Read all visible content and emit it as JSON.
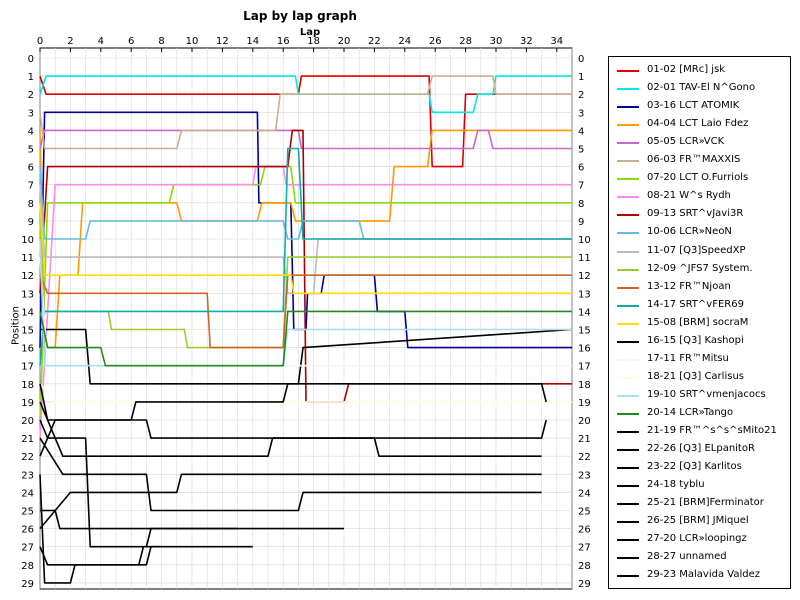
{
  "chart_data": {
    "type": "line",
    "title": "Lap by lap graph",
    "xlabel": "Lap",
    "ylabel": "Position",
    "xlim": [
      0,
      35
    ],
    "ylim": [
      0,
      29
    ],
    "y_inverted": true,
    "x_ticks": [
      "0",
      "2",
      "4",
      "6",
      "8",
      "10",
      "12",
      "14",
      "16",
      "18",
      "20",
      "22",
      "24",
      "26",
      "28",
      "30",
      "32",
      "34"
    ],
    "y_ticks": [
      "0",
      "1",
      "2",
      "3",
      "4",
      "5",
      "6",
      "7",
      "8",
      "9",
      "10",
      "11",
      "12",
      "13",
      "14",
      "15",
      "16",
      "17",
      "18",
      "19",
      "20",
      "21",
      "22",
      "23",
      "24",
      "25",
      "26",
      "27",
      "28",
      "29"
    ],
    "grid": true,
    "legend_position": "right",
    "series": [
      {
        "name": "01-02 [MRc] jsk",
        "color": "#dd0000",
        "points": [
          [
            0,
            1
          ],
          [
            0.4,
            2
          ],
          [
            17,
            2
          ],
          [
            17.2,
            1
          ],
          [
            25.6,
            1
          ],
          [
            25.8,
            6
          ],
          [
            27.8,
            6
          ],
          [
            28,
            2
          ],
          [
            35,
            2
          ]
        ]
      },
      {
        "name": "02-01 TAV-El N^Gono",
        "color": "#00e8e8",
        "points": [
          [
            0,
            2
          ],
          [
            0.4,
            1
          ],
          [
            16.8,
            1
          ],
          [
            17,
            2
          ],
          [
            25.6,
            2
          ],
          [
            25.8,
            3
          ],
          [
            28.5,
            3
          ],
          [
            28.8,
            2
          ],
          [
            29.8,
            2
          ],
          [
            30,
            1
          ],
          [
            35,
            1
          ]
        ]
      },
      {
        "name": "03-16 LCT ATOMIK",
        "color": "#000099",
        "points": [
          [
            0,
            16
          ],
          [
            0.3,
            3
          ],
          [
            14.3,
            3
          ],
          [
            14.4,
            8
          ],
          [
            16.5,
            8
          ],
          [
            16.7,
            15
          ],
          [
            17.5,
            15
          ],
          [
            17.6,
            13
          ],
          [
            18.5,
            13
          ],
          [
            18.7,
            12
          ],
          [
            22,
            12
          ],
          [
            22.2,
            14
          ],
          [
            24,
            14
          ],
          [
            24.2,
            16
          ],
          [
            35,
            16
          ]
        ]
      },
      {
        "name": "04-04 LCT Laio Fdez",
        "color": "#ff9900",
        "points": [
          [
            0,
            4
          ],
          [
            0.3,
            16
          ],
          [
            1,
            16
          ],
          [
            1.3,
            12
          ],
          [
            2.5,
            12
          ],
          [
            2.8,
            8
          ],
          [
            9,
            8
          ],
          [
            9.3,
            9
          ],
          [
            14.3,
            9
          ],
          [
            14.6,
            8
          ],
          [
            16.5,
            8
          ],
          [
            16.8,
            9
          ],
          [
            23,
            9
          ],
          [
            23.3,
            6
          ],
          [
            25.5,
            6
          ],
          [
            25.8,
            4
          ],
          [
            35,
            4
          ]
        ]
      },
      {
        "name": "05-05 LCR»VCK",
        "color": "#cc66cc",
        "points": [
          [
            0,
            5
          ],
          [
            0.3,
            4
          ],
          [
            17,
            4
          ],
          [
            17.2,
            5
          ],
          [
            28.5,
            5
          ],
          [
            28.8,
            4
          ],
          [
            29.5,
            4
          ],
          [
            29.8,
            5
          ],
          [
            35,
            5
          ]
        ]
      },
      {
        "name": "06-03 FR™MAXXIS",
        "color": "#c8b090",
        "points": [
          [
            0,
            3
          ],
          [
            0.3,
            5
          ],
          [
            9,
            5
          ],
          [
            9.3,
            4
          ],
          [
            15.5,
            4
          ],
          [
            15.8,
            2
          ],
          [
            25.5,
            2
          ],
          [
            25.8,
            1
          ],
          [
            29.8,
            1
          ],
          [
            30,
            2
          ],
          [
            35,
            2
          ]
        ]
      },
      {
        "name": "07-20 LCT O.Furriols",
        "color": "#88dd00",
        "points": [
          [
            0,
            20
          ],
          [
            0.5,
            8
          ],
          [
            8.5,
            8
          ],
          [
            8.8,
            7
          ],
          [
            14.5,
            7
          ],
          [
            14.8,
            6
          ],
          [
            16.5,
            6
          ],
          [
            16.8,
            8
          ],
          [
            35,
            8
          ]
        ]
      },
      {
        "name": "08-21 W^s Rydh",
        "color": "#ff88ee",
        "points": [
          [
            0,
            21
          ],
          [
            1,
            7
          ],
          [
            14,
            7
          ],
          [
            14.2,
            6
          ],
          [
            16,
            6
          ],
          [
            16.2,
            7
          ],
          [
            35,
            7
          ]
        ]
      },
      {
        "name": "09-13 SRT^vJavi3R",
        "color": "#aa0000",
        "points": [
          [
            0,
            13
          ],
          [
            0.5,
            6
          ],
          [
            16.3,
            6
          ],
          [
            16.6,
            4
          ],
          [
            17.3,
            4
          ],
          [
            17.5,
            19
          ],
          [
            20,
            19
          ],
          [
            20.3,
            18
          ],
          [
            35,
            18
          ]
        ]
      },
      {
        "name": "10-06 LCR»NeoN",
        "color": "#66bbdd",
        "points": [
          [
            0,
            6
          ],
          [
            0.3,
            10
          ],
          [
            3,
            10
          ],
          [
            3.3,
            9
          ],
          [
            16,
            9
          ],
          [
            16.3,
            10
          ],
          [
            17,
            10
          ],
          [
            17.3,
            9
          ],
          [
            21,
            9
          ],
          [
            21.3,
            10
          ],
          [
            35,
            10
          ]
        ]
      },
      {
        "name": "11-07 [Q3]SpeedXP",
        "color": "#bbbbbb",
        "points": [
          [
            0,
            7
          ],
          [
            0.3,
            11
          ],
          [
            16,
            11
          ],
          [
            16.3,
            13
          ],
          [
            18,
            13
          ],
          [
            18.3,
            10
          ],
          [
            35,
            10
          ]
        ]
      },
      {
        "name": "12-09 ^JFS7 System.",
        "color": "#99cc33",
        "points": [
          [
            0,
            9
          ],
          [
            0.3,
            14
          ],
          [
            4.5,
            14
          ],
          [
            4.7,
            15
          ],
          [
            9.5,
            15
          ],
          [
            9.7,
            16
          ],
          [
            16,
            16
          ],
          [
            16.3,
            11
          ],
          [
            35,
            11
          ]
        ]
      },
      {
        "name": "13-12 FR™Njoan",
        "color": "#cc6622",
        "points": [
          [
            0,
            12
          ],
          [
            0.5,
            13
          ],
          [
            11,
            13
          ],
          [
            11.2,
            16
          ],
          [
            16,
            16
          ],
          [
            16.3,
            12
          ],
          [
            35,
            12
          ]
        ]
      },
      {
        "name": "14-17 SRT^vFER69",
        "color": "#11aaaa",
        "points": [
          [
            0,
            17
          ],
          [
            0.3,
            14
          ],
          [
            16,
            14
          ],
          [
            16.3,
            5
          ],
          [
            17,
            5
          ],
          [
            17.3,
            10
          ],
          [
            35,
            10
          ]
        ]
      },
      {
        "name": "15-08 [BRM] socraM",
        "color": "#ffdd00",
        "points": [
          [
            0,
            8
          ],
          [
            0.3,
            12
          ],
          [
            15,
            12
          ],
          [
            15.3,
            12
          ],
          [
            16.5,
            12
          ],
          [
            16.7,
            13
          ],
          [
            35,
            13
          ]
        ]
      },
      {
        "name": "16-15 [Q3] Kashopi",
        "color": "#000000",
        "points": [
          [
            0,
            15
          ],
          [
            3,
            15
          ],
          [
            3.3,
            18
          ],
          [
            17,
            18
          ],
          [
            17.3,
            16
          ],
          [
            35,
            15
          ]
        ]
      },
      {
        "name": "17-11 FR™Mitsu",
        "color": "#f4f4f4",
        "points": [
          [
            0,
            11
          ],
          [
            0.5,
            17
          ],
          [
            35,
            17
          ]
        ]
      },
      {
        "name": "18-21 [Q3] Carlisus",
        "color": "#ffffdd",
        "points": [
          [
            0,
            18
          ],
          [
            1,
            19
          ],
          [
            35,
            19
          ]
        ]
      },
      {
        "name": "19-10 SRT^vmenjacocs",
        "color": "#aaddee",
        "points": [
          [
            0,
            10
          ],
          [
            0.3,
            17
          ],
          [
            16,
            17
          ],
          [
            16.3,
            15
          ],
          [
            35,
            15
          ]
        ]
      },
      {
        "name": "20-14 LCR»Tango",
        "color": "#228822",
        "points": [
          [
            0,
            14
          ],
          [
            0.5,
            16
          ],
          [
            4,
            16
          ],
          [
            4.3,
            17
          ],
          [
            16,
            17
          ],
          [
            16.3,
            14
          ],
          [
            35,
            14
          ]
        ]
      },
      {
        "name": "21-19 FR™^s^s^sMito21",
        "color": "#000000",
        "points": [
          [
            0,
            19
          ],
          [
            1.5,
            22
          ],
          [
            15,
            22
          ],
          [
            15.3,
            21
          ],
          [
            33,
            21
          ],
          [
            33.3,
            20
          ]
        ]
      },
      {
        "name": "22-26 [Q3] ELpanitoR",
        "color": "#000000",
        "points": [
          [
            0,
            26
          ],
          [
            2,
            24
          ],
          [
            9,
            24
          ],
          [
            9.3,
            23
          ],
          [
            33,
            23
          ]
        ]
      },
      {
        "name": "23-22 [Q3] Karlitos",
        "color": "#000000",
        "points": [
          [
            0,
            22
          ],
          [
            1,
            20
          ],
          [
            6,
            20
          ],
          [
            6.3,
            19
          ],
          [
            16,
            19
          ],
          [
            16.3,
            18
          ],
          [
            33,
            18
          ],
          [
            33.3,
            19
          ]
        ]
      },
      {
        "name": "24-18 tyblu",
        "color": "#000000",
        "points": [
          [
            0,
            18
          ],
          [
            0.5,
            20
          ],
          [
            7,
            20
          ],
          [
            7.3,
            21
          ],
          [
            22,
            21
          ],
          [
            22.3,
            22
          ],
          [
            33,
            22
          ]
        ]
      },
      {
        "name": "25-21 [BRM]Ferminator",
        "color": "#000000",
        "points": [
          [
            0,
            21
          ],
          [
            1.5,
            23
          ],
          [
            7,
            23
          ],
          [
            7.3,
            25
          ],
          [
            17,
            25
          ],
          [
            17.3,
            24
          ],
          [
            33,
            24
          ]
        ]
      },
      {
        "name": "26-25 [BRM] JMiquel",
        "color": "#000000",
        "points": [
          [
            0,
            25
          ],
          [
            1,
            25
          ],
          [
            1.3,
            26
          ],
          [
            20,
            26
          ]
        ]
      },
      {
        "name": "27-20 LCR»loopingz",
        "color": "#000000",
        "points": [
          [
            0,
            20
          ],
          [
            0.5,
            21
          ],
          [
            3,
            21
          ],
          [
            3.3,
            27
          ],
          [
            7,
            27
          ],
          [
            7.3,
            26
          ],
          [
            13,
            26
          ]
        ]
      },
      {
        "name": "28-27 unnamed",
        "color": "#000000",
        "points": [
          [
            0,
            27
          ],
          [
            0.5,
            28
          ],
          [
            6.5,
            28
          ],
          [
            6.8,
            27
          ],
          [
            14,
            27
          ]
        ]
      },
      {
        "name": "29-23 Malavida Valdez",
        "color": "#000000",
        "points": [
          [
            0,
            23
          ],
          [
            0.3,
            29
          ],
          [
            2,
            29
          ],
          [
            2.3,
            28
          ],
          [
            7,
            28
          ],
          [
            7.3,
            27
          ],
          [
            8,
            27
          ]
        ]
      }
    ]
  }
}
